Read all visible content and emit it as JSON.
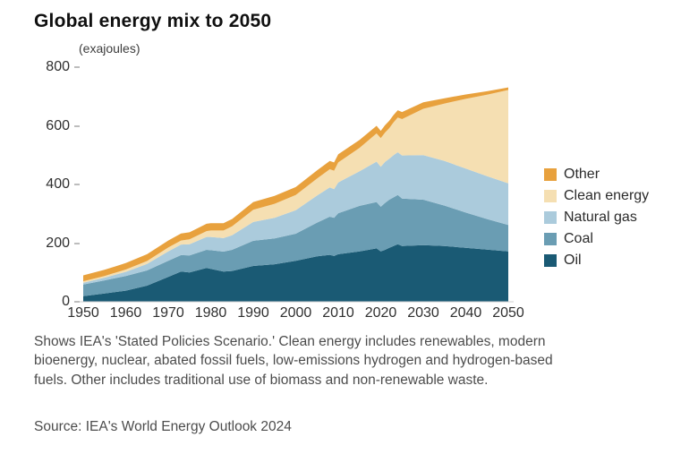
{
  "caption": "Shows IEA's 'Stated Policies Scenario.' Clean energy includes renewables, modern bioenergy, nuclear, abated fossil fuels, low-emissions hydrogen and hydrogen-based fuels. Other includes traditional use of biomass and non-renewable waste.",
  "source": "Source: IEA's World Energy Outlook 2024",
  "chart_data": {
    "type": "area",
    "stacked": true,
    "title": "Global energy mix to 2050",
    "unit": "(exajoules)",
    "ylim": [
      0,
      800
    ],
    "grid": false,
    "legend_position": "right",
    "y_ticks": [
      0,
      200,
      400,
      600,
      800
    ],
    "x_ticks": [
      1950,
      1960,
      1970,
      1980,
      1990,
      2000,
      2010,
      2020,
      2030,
      2040,
      2050
    ],
    "x": [
      1950,
      1955,
      1960,
      1965,
      1970,
      1973,
      1975,
      1979,
      1980,
      1983,
      1985,
      1990,
      1995,
      2000,
      2005,
      2008,
      2009,
      2010,
      2015,
      2019,
      2020,
      2021,
      2022,
      2023,
      2024,
      2025,
      2030,
      2035,
      2040,
      2045,
      2050
    ],
    "series": [
      {
        "name": "Oil",
        "color": "#1A5A74",
        "values": [
          19,
          28,
          38,
          55,
          85,
          103,
          100,
          115,
          112,
          103,
          105,
          122,
          128,
          140,
          155,
          160,
          156,
          162,
          172,
          182,
          172,
          177,
          184,
          190,
          196,
          190,
          193,
          190,
          184,
          178,
          172
        ]
      },
      {
        "name": "Coal",
        "color": "#6A9DB3",
        "values": [
          40,
          45,
          50,
          52,
          55,
          56,
          58,
          62,
          64,
          68,
          72,
          86,
          88,
          92,
          115,
          130,
          130,
          140,
          155,
          158,
          152,
          160,
          164,
          166,
          168,
          162,
          155,
          138,
          120,
          104,
          90
        ]
      },
      {
        "name": "Natural gas",
        "color": "#ABCBDC",
        "values": [
          6,
          9,
          14,
          22,
          32,
          36,
          38,
          44,
          45,
          46,
          50,
          64,
          70,
          80,
          92,
          100,
          98,
          105,
          118,
          138,
          136,
          140,
          140,
          144,
          146,
          147,
          152,
          152,
          150,
          146,
          142
        ]
      },
      {
        "name": "Clean energy",
        "color": "#F5DFB2",
        "values": [
          5,
          6,
          8,
          10,
          13,
          14,
          17,
          20,
          22,
          26,
          30,
          42,
          48,
          52,
          58,
          62,
          63,
          68,
          80,
          96,
          98,
          100,
          104,
          112,
          118,
          124,
          158,
          196,
          238,
          278,
          318
        ]
      },
      {
        "name": "Other",
        "color": "#E8A13D",
        "values": [
          20,
          21,
          22,
          23,
          24,
          24,
          24,
          25,
          25,
          25,
          25,
          26,
          27,
          27,
          28,
          28,
          28,
          28,
          27,
          26,
          25,
          25,
          25,
          25,
          25,
          24,
          22,
          18,
          15,
          12,
          9
        ]
      }
    ]
  }
}
